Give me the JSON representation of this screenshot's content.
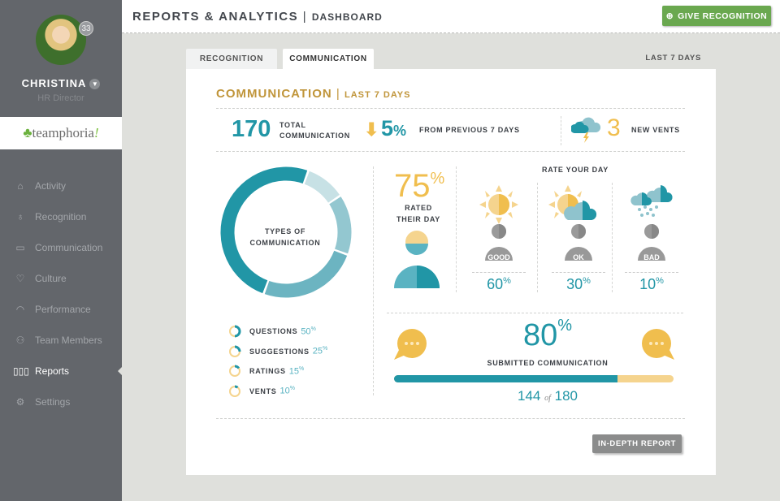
{
  "user": {
    "name": "Christina",
    "role": "HR Director",
    "notifications": "33"
  },
  "logo": {
    "text": "teamphoria",
    "suffix": "!"
  },
  "nav": [
    {
      "label": "Activity",
      "icon": "home-icon"
    },
    {
      "label": "Recognition",
      "icon": "ribbon-icon"
    },
    {
      "label": "Communication",
      "icon": "chat-icon"
    },
    {
      "label": "Culture",
      "icon": "heart-icon"
    },
    {
      "label": "Performance",
      "icon": "gauge-icon"
    },
    {
      "label": "Team Members",
      "icon": "people-icon"
    },
    {
      "label": "Reports",
      "icon": "bars-icon",
      "active": true
    },
    {
      "label": "Settings",
      "icon": "gear-icon"
    }
  ],
  "header": {
    "title": "REPORTS & ANALYTICS",
    "separator": "|",
    "subtitle": "DASHBOARD",
    "give_button": "GIVE RECOGNITION"
  },
  "tabs": [
    {
      "label": "RECOGNITION"
    },
    {
      "label": "COMMUNICATION",
      "active": true
    }
  ],
  "period": "LAST 7 DAYS",
  "card": {
    "title": "COMMUNICATION",
    "separator": "|",
    "subtitle": "LAST 7 DAYS",
    "total": {
      "value": "170",
      "label1": "TOTAL",
      "label2": "COMMUNICATION"
    },
    "change": {
      "direction": "down",
      "value": "5",
      "unit": "%",
      "label": "FROM PREVIOUS 7 DAYS"
    },
    "vents": {
      "value": "3",
      "label": "NEW VENTS"
    },
    "donut": {
      "label1": "TYPES OF",
      "label2": "COMMUNICATION"
    },
    "types": [
      {
        "label": "QUESTIONS",
        "value": 50,
        "color": "#2196a6"
      },
      {
        "label": "SUGGESTIONS",
        "value": 25,
        "color": "#6cb4c1"
      },
      {
        "label": "RATINGS",
        "value": 15,
        "color": "#93c7d0"
      },
      {
        "label": "VENTS",
        "value": 10,
        "color": "#c7e1e5"
      }
    ],
    "rated": {
      "value": "75",
      "unit": "%",
      "label1": "RATED",
      "label2": "THEIR DAY"
    },
    "rate_your_day": {
      "title": "RATE YOUR DAY",
      "items": [
        {
          "label": "GOOD",
          "value": "60",
          "unit": "%",
          "icon": "sun-icon"
        },
        {
          "label": "OK",
          "value": "30",
          "unit": "%",
          "icon": "sun-cloud-icon"
        },
        {
          "label": "BAD",
          "value": "10",
          "unit": "%",
          "icon": "rain-cloud-icon"
        }
      ]
    },
    "submitted": {
      "percent": "80",
      "unit": "%",
      "label": "SUBMITTED COMMUNICATION",
      "count": "144",
      "of": "of",
      "total": "180",
      "fraction": 0.8
    },
    "report_button": "IN-DEPTH REPORT"
  },
  "colors": {
    "teal": "#2196a6",
    "gold": "#c0953a",
    "yellow": "#f0be4e",
    "green": "#6aa84f",
    "sidebar": "#63666b"
  }
}
